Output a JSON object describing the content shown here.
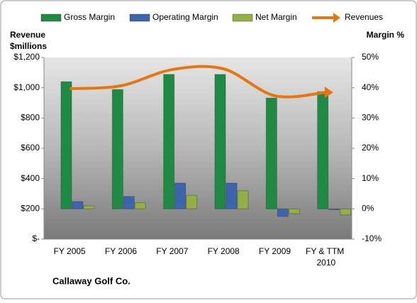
{
  "chart_data": {
    "type": "bar",
    "title": "Callaway Golf Co.",
    "ylabel_lines": [
      "Revenue",
      "$millions"
    ],
    "y2label": "Margin %",
    "categories": [
      "FY 2005",
      "FY 2006",
      "FY 2007",
      "FY 2008",
      "FY 2009",
      "FY & TTM 2010"
    ],
    "series": [
      {
        "name": "Gross Margin",
        "color": "#1f8a44",
        "axis": "y2",
        "values": [
          42.0,
          39.4,
          44.4,
          44.4,
          36.6,
          38.7
        ]
      },
      {
        "name": "Operating Margin",
        "color": "#3b65ad",
        "axis": "y2",
        "values": [
          2.4,
          4.1,
          8.5,
          8.5,
          -2.5,
          -0.3
        ]
      },
      {
        "name": "Net Margin",
        "color": "#94b045",
        "axis": "y2",
        "values": [
          1.0,
          2.0,
          4.5,
          6.0,
          -1.6,
          -2.0
        ]
      },
      {
        "name": "Revenues",
        "color": "#e8760f",
        "type": "line",
        "values": [
          994,
          1013,
          1120,
          1125,
          947,
          970
        ]
      }
    ],
    "ylim": [
      0,
      1200
    ],
    "yticks": [
      {
        "value": 0,
        "label": "$-"
      },
      {
        "value": 200,
        "label": "$200"
      },
      {
        "value": 400,
        "label": "$400"
      },
      {
        "value": 600,
        "label": "$600"
      },
      {
        "value": 800,
        "label": "$800"
      },
      {
        "value": 1000,
        "label": "$1,000"
      },
      {
        "value": 1200,
        "label": "$1,200"
      }
    ],
    "y2lim": [
      -10,
      50
    ],
    "y2ticks": [
      {
        "value": -10,
        "label": "-10%"
      },
      {
        "value": 0,
        "label": "0%"
      },
      {
        "value": 10,
        "label": "10%"
      },
      {
        "value": 20,
        "label": "20%"
      },
      {
        "value": 30,
        "label": "30%"
      },
      {
        "value": 40,
        "label": "40%"
      },
      {
        "value": 50,
        "label": "50%"
      }
    ]
  }
}
